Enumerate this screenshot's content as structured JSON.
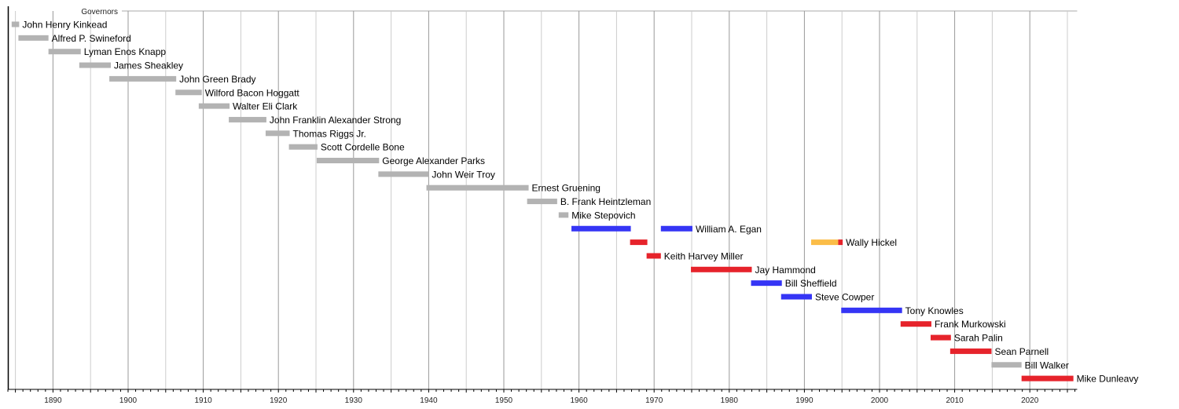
{
  "chart_data": {
    "type": "timeline",
    "title": "Governors",
    "xlim": [
      1884,
      2026.3
    ],
    "x_ticks": [
      1890,
      1900,
      1910,
      1920,
      1930,
      1940,
      1950,
      1960,
      1970,
      1980,
      1990,
      2000,
      2010,
      2020
    ],
    "x_tick_labels": [
      "1890",
      "1900",
      "1910",
      "1920",
      "1930",
      "1940",
      "1950",
      "1960",
      "1970",
      "1980",
      "1990",
      "2000",
      "2010",
      "2020"
    ],
    "grid": "vertical every 5 years, minor ticks every year",
    "colors": {
      "gray": "#b3b3b3",
      "blue": "#3535f5",
      "red": "#e6232b",
      "orange": "#fbbd48"
    },
    "rows": [
      {
        "name": "John Henry Kinkead",
        "segments": [
          {
            "start": 1884.5,
            "end": 1885.5,
            "color": "gray"
          }
        ]
      },
      {
        "name": "Alfred P. Swineford",
        "segments": [
          {
            "start": 1885.4,
            "end": 1889.4,
            "color": "gray"
          }
        ]
      },
      {
        "name": "Lyman Enos Knapp",
        "segments": [
          {
            "start": 1889.4,
            "end": 1893.7,
            "color": "gray"
          }
        ]
      },
      {
        "name": "James Sheakley",
        "segments": [
          {
            "start": 1893.5,
            "end": 1897.7,
            "color": "gray"
          }
        ]
      },
      {
        "name": "John Green Brady",
        "segments": [
          {
            "start": 1897.5,
            "end": 1906.4,
            "color": "gray"
          }
        ]
      },
      {
        "name": "Wilford Bacon Hoggatt",
        "segments": [
          {
            "start": 1906.3,
            "end": 1909.8,
            "color": "gray"
          }
        ]
      },
      {
        "name": "Walter Eli Clark",
        "segments": [
          {
            "start": 1909.4,
            "end": 1913.5,
            "color": "gray"
          }
        ]
      },
      {
        "name": "John Franklin Alexander Strong",
        "segments": [
          {
            "start": 1913.4,
            "end": 1918.4,
            "color": "gray"
          }
        ]
      },
      {
        "name": "Thomas Riggs Jr.",
        "segments": [
          {
            "start": 1918.3,
            "end": 1921.5,
            "color": "gray"
          }
        ]
      },
      {
        "name": "Scott Cordelle Bone",
        "segments": [
          {
            "start": 1921.4,
            "end": 1925.2,
            "color": "gray"
          }
        ]
      },
      {
        "name": "George Alexander Parks",
        "segments": [
          {
            "start": 1925.1,
            "end": 1933.4,
            "color": "gray"
          }
        ]
      },
      {
        "name": "John Weir Troy",
        "segments": [
          {
            "start": 1933.3,
            "end": 1940.0,
            "color": "gray"
          }
        ]
      },
      {
        "name": "Ernest Gruening",
        "segments": [
          {
            "start": 1939.7,
            "end": 1953.3,
            "color": "gray"
          }
        ]
      },
      {
        "name": "B. Frank Heintzleman",
        "segments": [
          {
            "start": 1953.1,
            "end": 1957.1,
            "color": "gray"
          }
        ]
      },
      {
        "name": "Mike Stepovich",
        "segments": [
          {
            "start": 1957.3,
            "end": 1958.6,
            "color": "gray"
          }
        ]
      },
      {
        "name": "William A. Egan",
        "segments": [
          {
            "start": 1959.0,
            "end": 1966.9,
            "color": "blue"
          },
          {
            "start": 1970.9,
            "end": 1975.1,
            "color": "blue"
          }
        ]
      },
      {
        "name": "Wally Hickel",
        "segments": [
          {
            "start": 1966.8,
            "end": 1969.1,
            "color": "red"
          },
          {
            "start": 1990.9,
            "end": 1994.5,
            "color": "orange"
          },
          {
            "start": 1994.5,
            "end": 1995.1,
            "color": "red"
          }
        ]
      },
      {
        "name": "Keith Harvey Miller",
        "segments": [
          {
            "start": 1969.0,
            "end": 1970.9,
            "color": "red"
          }
        ]
      },
      {
        "name": "Jay Hammond",
        "segments": [
          {
            "start": 1974.9,
            "end": 1983.0,
            "color": "red"
          }
        ]
      },
      {
        "name": "Bill Sheffield",
        "segments": [
          {
            "start": 1982.9,
            "end": 1987.0,
            "color": "blue"
          }
        ]
      },
      {
        "name": "Steve Cowper",
        "segments": [
          {
            "start": 1986.9,
            "end": 1991.0,
            "color": "blue"
          }
        ]
      },
      {
        "name": "Tony Knowles",
        "segments": [
          {
            "start": 1994.9,
            "end": 2003.0,
            "color": "blue"
          }
        ]
      },
      {
        "name": "Frank Murkowski",
        "segments": [
          {
            "start": 2002.8,
            "end": 2006.9,
            "color": "red"
          }
        ]
      },
      {
        "name": "Sarah Palin",
        "segments": [
          {
            "start": 2006.8,
            "end": 2009.5,
            "color": "red"
          }
        ]
      },
      {
        "name": "Sean Parnell",
        "segments": [
          {
            "start": 2009.4,
            "end": 2014.9,
            "color": "red"
          }
        ]
      },
      {
        "name": "Bill Walker",
        "segments": [
          {
            "start": 2014.9,
            "end": 2018.9,
            "color": "gray"
          }
        ]
      },
      {
        "name": "Mike Dunleavy",
        "segments": [
          {
            "start": 2018.9,
            "end": 2025.8,
            "color": "red"
          }
        ]
      }
    ]
  }
}
